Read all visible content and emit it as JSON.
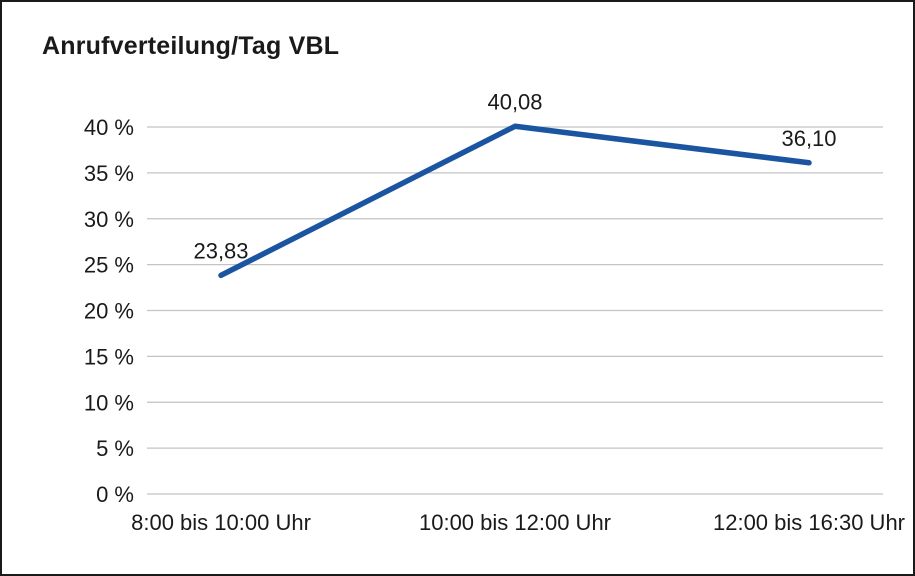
{
  "title": "Anrufverteilung/Tag VBL",
  "chart_data": {
    "type": "line",
    "title": "Anrufverteilung/Tag VBL",
    "categories": [
      "8:00 bis 10:00 Uhr",
      "10:00 bis 12:00 Uhr",
      "12:00 bis 16:30 Uhr"
    ],
    "values": [
      23.83,
      40.08,
      36.1
    ],
    "value_labels": [
      "23,83",
      "40,08",
      "36,10"
    ],
    "xlabel": "",
    "ylabel": "",
    "ylim": [
      0,
      40
    ],
    "ytick_step": 5,
    "ytick_suffix": " %",
    "ytick_labels": [
      "0 %",
      "5 %",
      "10 %",
      "15 %",
      "20 %",
      "25 %",
      "30 %",
      "35 %",
      "40 %"
    ],
    "grid": "horizontal",
    "legend": "none",
    "line_color": "#1b55a1",
    "grid_color": "#c3c3c3",
    "text_color": "#1a1a1a"
  }
}
